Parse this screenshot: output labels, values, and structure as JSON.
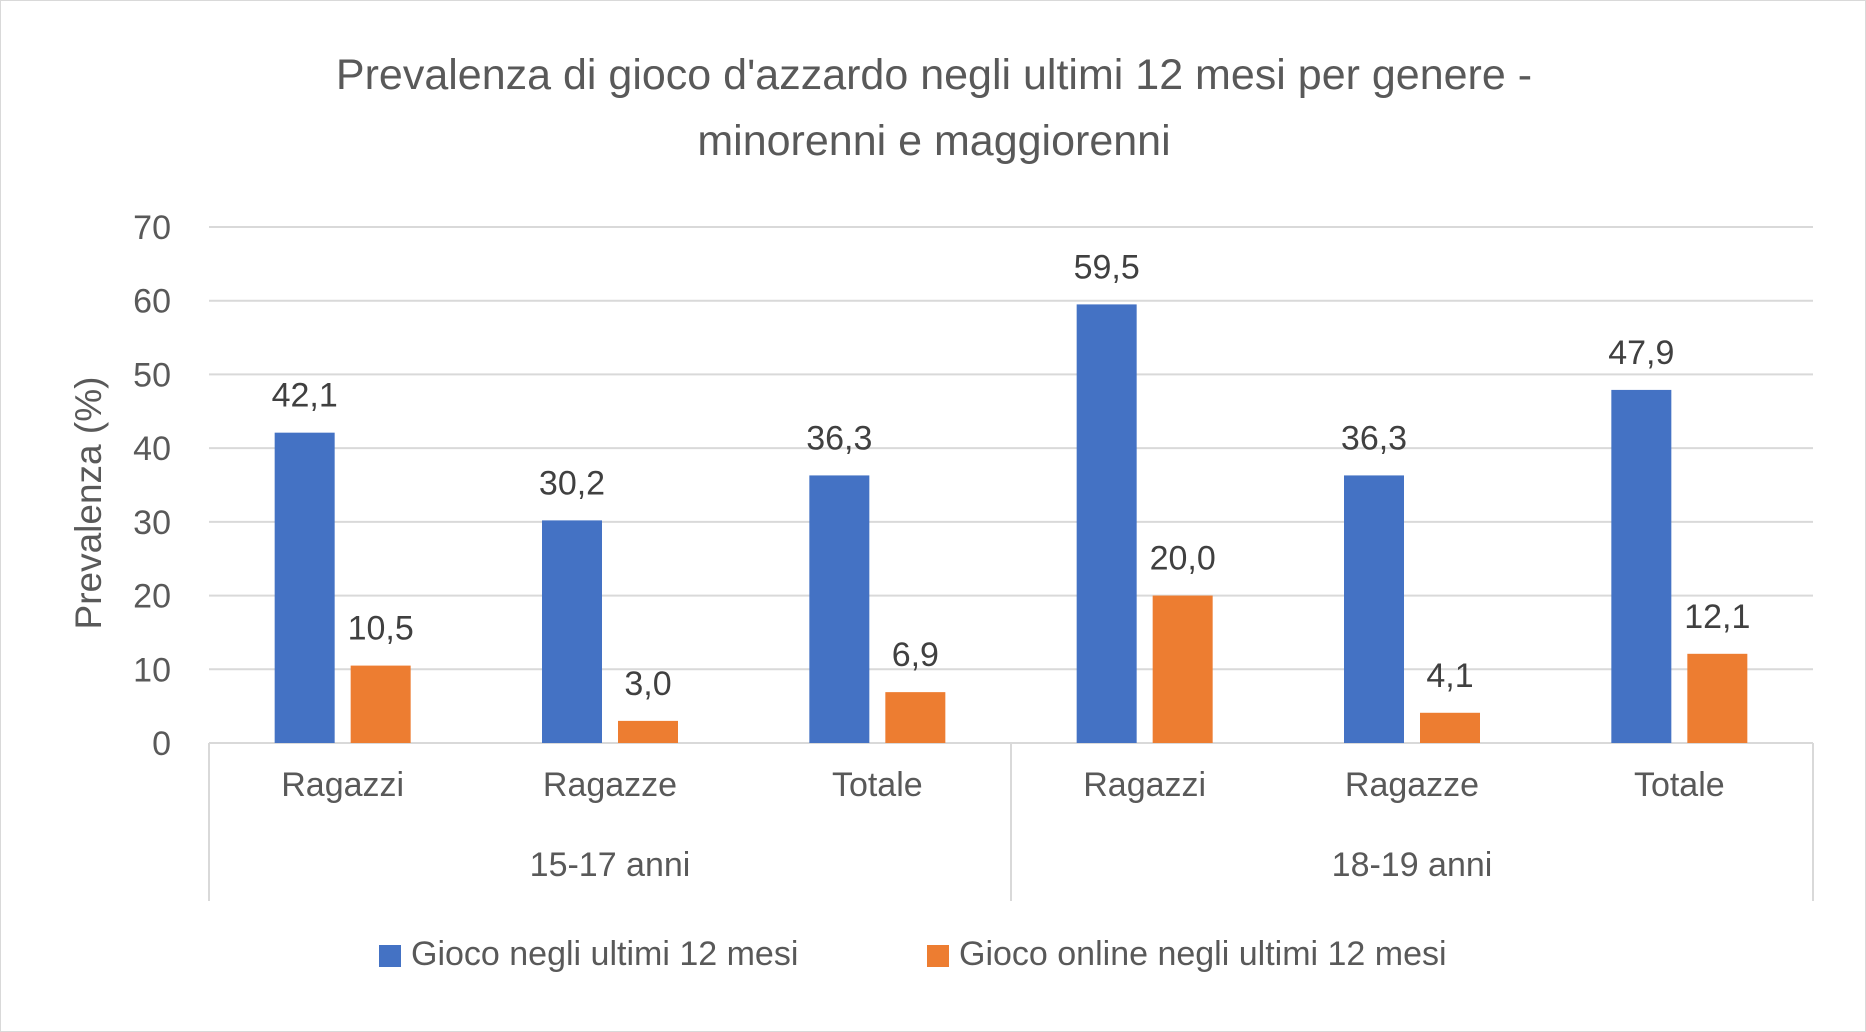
{
  "chart_data": {
    "type": "bar",
    "title_line1": "Prevalenza di gioco d'azzardo negli ultimi 12 mesi per genere -",
    "title_line2": "minorenni e maggiorenni",
    "ylabel": "Prevalenza (%)",
    "xlabel": "",
    "ylim": [
      0,
      70
    ],
    "ytick_step": 10,
    "grid": true,
    "legend_position": "bottom",
    "groups": [
      {
        "label": "15-17 anni",
        "categories": [
          "Ragazzi",
          "Ragazze",
          "Totale"
        ]
      },
      {
        "label": "18-19 anni",
        "categories": [
          "Ragazzi",
          "Ragazze",
          "Totale"
        ]
      }
    ],
    "categories": [
      "Ragazzi",
      "Ragazze",
      "Totale",
      "Ragazzi",
      "Ragazze",
      "Totale"
    ],
    "series": [
      {
        "name": "Gioco negli ultimi 12 mesi",
        "color": "#4472C4",
        "values": [
          42.1,
          30.2,
          36.3,
          59.5,
          36.3,
          47.9
        ],
        "labels": [
          "42,1",
          "30,2",
          "36,3",
          "59,5",
          "36,3",
          "47,9"
        ]
      },
      {
        "name": "Gioco online negli ultimi 12 mesi",
        "color": "#ED7D31",
        "values": [
          10.5,
          3.0,
          6.9,
          20.0,
          4.1,
          12.1
        ],
        "labels": [
          "10,5",
          "3,0",
          "6,9",
          "20,0",
          "4,1",
          "12,1"
        ]
      }
    ]
  }
}
